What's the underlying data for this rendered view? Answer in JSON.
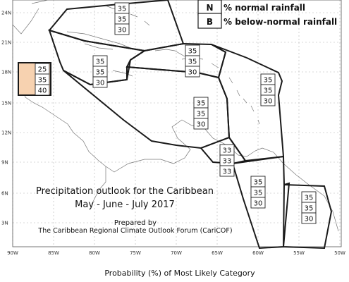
{
  "colors": {
    "zone_border": "#1a1a1a",
    "coast": "#777777",
    "grid": "#b5b5b5",
    "highlight": "#f7d2b0"
  },
  "legend": {
    "items": [
      {
        "key": "N",
        "description": "% normal rainfall"
      },
      {
        "key": "B",
        "description": "% below-normal rainfall"
      }
    ]
  },
  "map": {
    "title_line1": "Precipitation outlook for the Caribbean",
    "title_line2": "May - June - July 2017",
    "prepared_by": "Prepared by",
    "organization": "The Caribbean Regional Climate Outlook Forum (CariCOF)",
    "lat_labels": [
      "24N",
      "21N",
      "18N",
      "15N",
      "12N",
      "9N",
      "6N",
      "3N"
    ],
    "lon_labels": [
      "90W",
      "85W",
      "80W",
      "75W",
      "70W",
      "65W",
      "60W",
      "55W",
      "50W"
    ],
    "zones": [
      {
        "name": "bahamas",
        "values": [
          "35",
          "35",
          "30"
        ]
      },
      {
        "name": "belize",
        "values": [
          "25",
          "35",
          "40"
        ]
      },
      {
        "name": "western-greater-antilles",
        "values": [
          "35",
          "35",
          "30"
        ]
      },
      {
        "name": "hispaniola-puerto-rico",
        "values": [
          "35",
          "35",
          "30"
        ]
      },
      {
        "name": "eastern-caribbean",
        "values": [
          "35",
          "35",
          "30"
        ]
      },
      {
        "name": "central-caribbean",
        "values": [
          "35",
          "35",
          "30"
        ]
      },
      {
        "name": "southern-caribbean",
        "values": [
          "33",
          "33",
          "33"
        ]
      },
      {
        "name": "guyana",
        "values": [
          "35",
          "35",
          "30"
        ]
      },
      {
        "name": "suriname-french-guiana",
        "values": [
          "35",
          "35",
          "30"
        ]
      }
    ]
  },
  "footer": {
    "axis_caption": "Probability (%) of Most Likely Category"
  }
}
